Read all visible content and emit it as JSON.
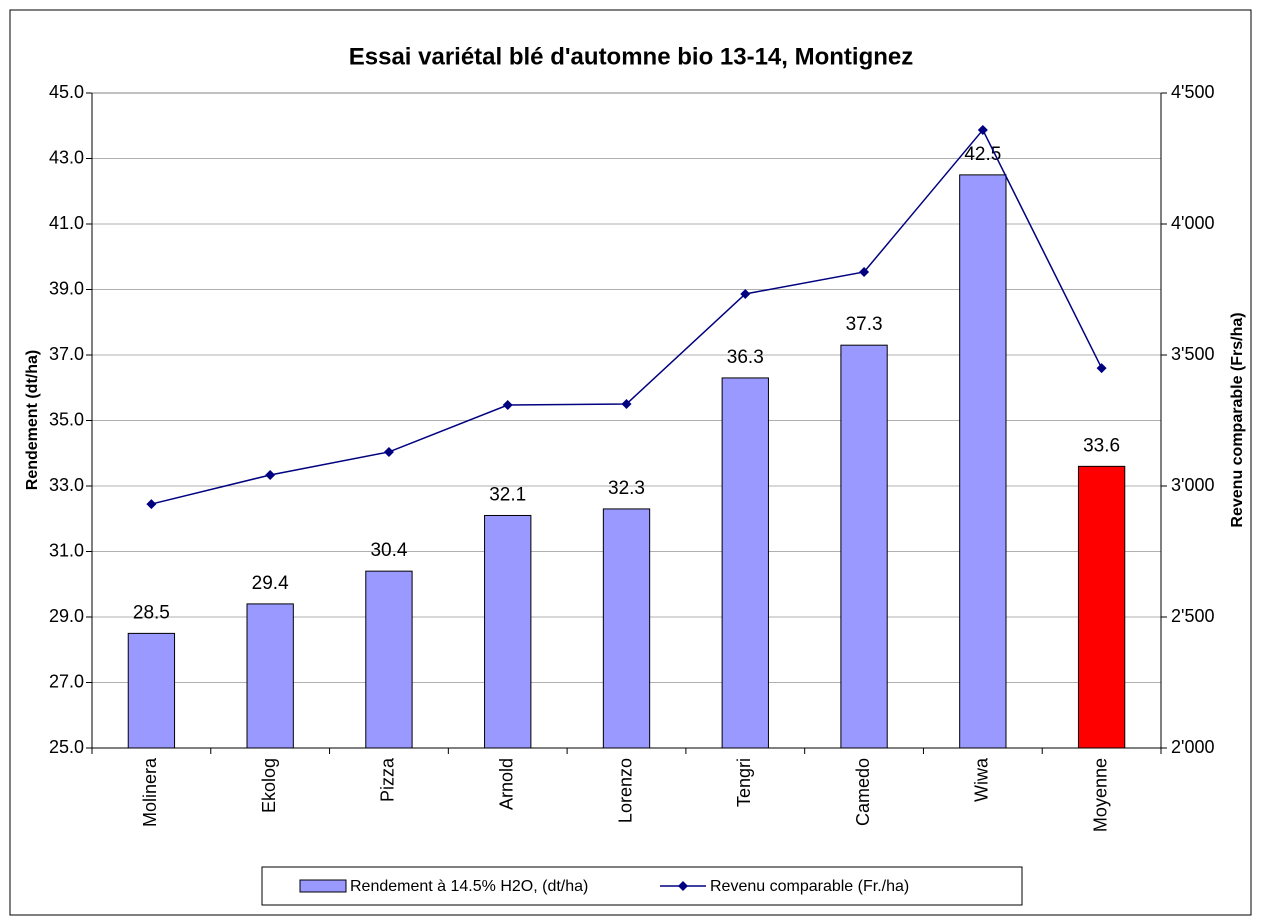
{
  "chart_data": {
    "type": "bar_line",
    "title": "Essai variétal blé d'automne bio 13-14, Montignez",
    "y_label": "Rendement (dt/ha)",
    "y2_label": "Revenu comparable (Frs/ha)",
    "categories": [
      "Molinera",
      "Ekolog",
      "Pizza",
      "Arnold",
      "Lorenzo",
      "Tengri",
      "Camedo",
      "Wiwa",
      "Moyenne"
    ],
    "series": [
      {
        "name": "Rendement à 14.5% H2O, (dt/ha)",
        "type": "bar",
        "color": "#9999ff",
        "colors": [
          "#9999ff",
          "#9999ff",
          "#9999ff",
          "#9999ff",
          "#9999ff",
          "#9999ff",
          "#9999ff",
          "#9999ff",
          "#ff0000"
        ],
        "values": [
          28.5,
          29.4,
          30.4,
          32.1,
          32.3,
          36.3,
          37.3,
          42.5,
          33.6
        ]
      },
      {
        "name": "Revenu comparable (Fr./ha)",
        "type": "line",
        "axis": "y2",
        "color": "#000080",
        "values": [
          2931,
          3042,
          3130,
          3309,
          3313,
          3733,
          3817,
          4359,
          3450
        ]
      }
    ],
    "ylim": [
      25,
      45
    ],
    "yticks": [
      {
        "value": 25,
        "label": "25.0"
      },
      {
        "value": 27,
        "label": "27.0"
      },
      {
        "value": 29,
        "label": "29.0"
      },
      {
        "value": 31,
        "label": "31.0"
      },
      {
        "value": 33,
        "label": "33.0"
      },
      {
        "value": 35,
        "label": "35.0"
      },
      {
        "value": 37,
        "label": "37.0"
      },
      {
        "value": 39,
        "label": "39.0"
      },
      {
        "value": 41,
        "label": "41.0"
      },
      {
        "value": 43,
        "label": "43.0"
      },
      {
        "value": 45,
        "label": "45.0"
      }
    ],
    "y2lim": [
      2000,
      4500
    ],
    "y2ticks": [
      {
        "value": 2000,
        "label": "2'000"
      },
      {
        "value": 2500,
        "label": "2'500"
      },
      {
        "value": 3000,
        "label": "3'000"
      },
      {
        "value": 3500,
        "label": "3'500"
      },
      {
        "value": 4000,
        "label": "4'000"
      },
      {
        "value": 4500,
        "label": "4'500"
      }
    ],
    "grid": true,
    "legend": "bottom"
  }
}
